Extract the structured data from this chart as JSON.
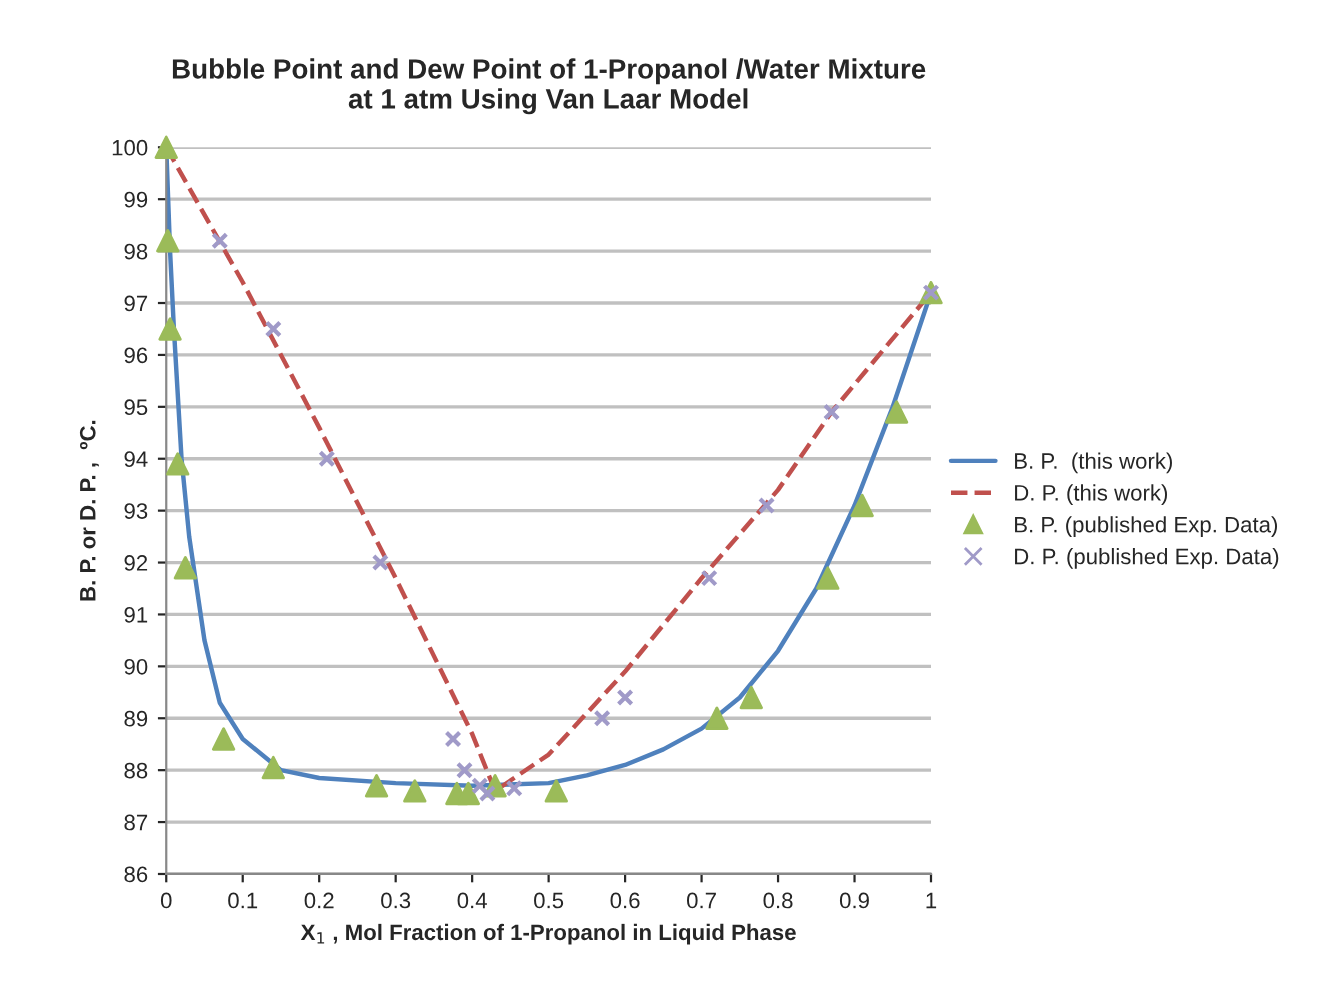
{
  "chart_data": {
    "type": "line",
    "title": "Bubble Point and Dew Point of 1-Propanol /Water Mixture\nat 1 atm Using Van Laar Model",
    "xlabel": "X$_{1}$ , Mol Fraction of 1-Propanol in Liquid Phase",
    "ylabel": "B. P. or D. P. ,  ºC.",
    "xlim": [
      0,
      1
    ],
    "ylim": [
      86,
      100
    ],
    "xticks": [
      0,
      0.1,
      0.2,
      0.3,
      0.4,
      0.5,
      0.6,
      0.7,
      0.8,
      0.9,
      1
    ],
    "yticks": [
      86,
      87,
      88,
      89,
      90,
      91,
      92,
      93,
      94,
      95,
      96,
      97,
      98,
      99,
      100
    ],
    "grid": "y",
    "legend": "right",
    "series": [
      {
        "name": "B. P.  (this work)",
        "color": "#4f81bd",
        "line_style": "solid",
        "marker": "none",
        "x": [
          0,
          0.005,
          0.01,
          0.02,
          0.03,
          0.05,
          0.07,
          0.1,
          0.15,
          0.2,
          0.3,
          0.4,
          0.5,
          0.55,
          0.6,
          0.65,
          0.7,
          0.75,
          0.8,
          0.85,
          0.9,
          0.95,
          1.0
        ],
        "values": [
          100,
          98,
          96.5,
          94,
          92.5,
          90.5,
          89.3,
          88.6,
          88.0,
          87.85,
          87.75,
          87.7,
          87.75,
          87.9,
          88.1,
          88.4,
          88.8,
          89.4,
          90.3,
          91.5,
          93.1,
          95.0,
          97.2
        ]
      },
      {
        "name": "D. P. (this work)",
        "color": "#c0504d",
        "line_style": "dashed",
        "marker": "none",
        "x": [
          0,
          0.1,
          0.2,
          0.3,
          0.4,
          0.43,
          0.5,
          0.55,
          0.6,
          0.7,
          0.8,
          0.87,
          1.0
        ],
        "values": [
          100,
          97.4,
          94.6,
          91.7,
          88.7,
          87.6,
          88.3,
          89.1,
          89.9,
          91.7,
          93.4,
          94.9,
          97.2
        ]
      },
      {
        "name": "B. P. (published Exp. Data)",
        "type": "scatter",
        "color": "#9bbb59",
        "marker": "triangle",
        "x": [
          0,
          0.002,
          0.005,
          0.015,
          0.025,
          0.075,
          0.14,
          0.275,
          0.325,
          0.38,
          0.395,
          0.43,
          0.51,
          0.72,
          0.765,
          0.865,
          0.91,
          0.955,
          1.0
        ],
        "values": [
          100,
          98.2,
          96.5,
          93.9,
          91.9,
          88.6,
          88.05,
          87.7,
          87.6,
          87.55,
          87.55,
          87.7,
          87.6,
          89.0,
          89.4,
          91.7,
          93.1,
          94.9,
          97.2
        ]
      },
      {
        "name": "D. P. (published Exp. Data)",
        "type": "scatter",
        "color": "#a09ac8",
        "marker": "cross",
        "x": [
          0.07,
          0.14,
          0.21,
          0.28,
          0.375,
          0.39,
          0.41,
          0.42,
          0.455,
          0.57,
          0.6,
          0.71,
          0.785,
          0.87,
          1.0
        ],
        "values": [
          98.2,
          96.5,
          94.0,
          92.0,
          88.6,
          88.0,
          87.7,
          87.55,
          87.65,
          89.0,
          89.4,
          91.7,
          93.1,
          94.9,
          97.2
        ]
      }
    ]
  }
}
